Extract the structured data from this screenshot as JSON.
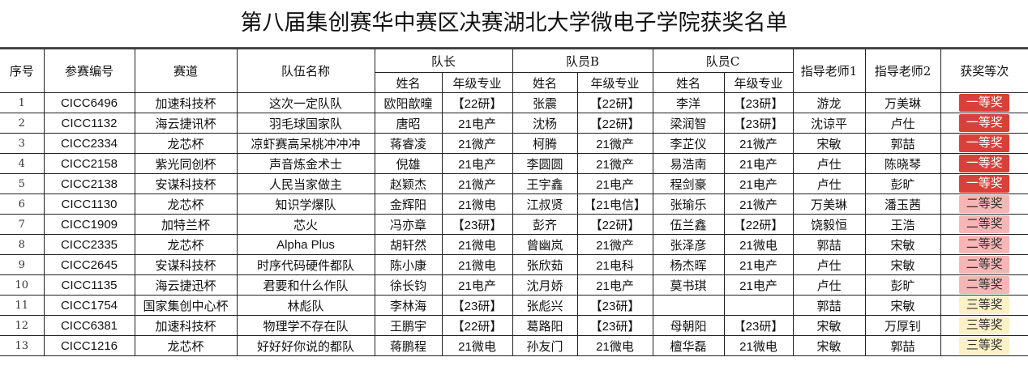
{
  "title": "第八届集创赛华中赛区决赛湖北大学微电子学院获奖名单",
  "headers": {
    "index": "序号",
    "entry_id": "参赛编号",
    "track": "赛道",
    "team_name": "队伍名称",
    "captain": "队长",
    "member_b": "队员B",
    "member_c": "队员C",
    "advisor1": "指导老师1",
    "advisor2": "指导老师2",
    "award": "获奖等次",
    "name": "姓名",
    "grade_major": "年级专业"
  },
  "award_colors": {
    "一等奖": "#d9403a",
    "二等奖": "#f6b6b6",
    "三等奖": "#fcf0c6"
  },
  "rows": [
    [
      "1",
      "CICC6496",
      "加速科技杯",
      "这次一定队队",
      "欧阳歆曈",
      "【22研】",
      "张震",
      "【22研】",
      "李洋",
      "【23研】",
      "游龙",
      "万美琳",
      "一等奖"
    ],
    [
      "2",
      "CICC1132",
      "海云捷讯杯",
      "羽毛球国家队",
      "唐昭",
      "21电产",
      "沈杨",
      "【22研】",
      "梁润智",
      "【23研】",
      "沈谅平",
      "卢仕",
      "一等奖"
    ],
    [
      "3",
      "CICC2334",
      "龙芯杯",
      "凉虾赛高呆桃冲冲冲",
      "蒋睿凌",
      "21微产",
      "柯腾",
      "21微产",
      "李芷仪",
      "21微产",
      "宋敏",
      "郭喆",
      "一等奖"
    ],
    [
      "4",
      "CICC2158",
      "紫光同创杯",
      "声音炼金术士",
      "倪雄",
      "21电产",
      "李圆圆",
      "21微产",
      "易浩南",
      "21电产",
      "卢仕",
      "陈晓琴",
      "一等奖"
    ],
    [
      "5",
      "CICC2138",
      "安谋科技杯",
      "人民当家做主",
      "赵颖杰",
      "21微产",
      "王宇鑫",
      "21电产",
      "程剑豪",
      "21电产",
      "卢仕",
      "彭旷",
      "一等奖"
    ],
    [
      "6",
      "CICC1130",
      "龙芯杯",
      "知识学爆队",
      "金辉阳",
      "21微电",
      "江叔贤",
      "【21电信】",
      "张瑜乐",
      "21微产",
      "万美琳",
      "潘玉茜",
      "二等奖"
    ],
    [
      "7",
      "CICC1909",
      "加特兰杯",
      "芯火",
      "冯亦章",
      "【23研】",
      "彭齐",
      "【22研】",
      "伍兰鑫",
      "【22研】",
      "饶毅恒",
      "王浩",
      "二等奖"
    ],
    [
      "8",
      "CICC2335",
      "龙芯杯",
      "Alpha Plus",
      "胡轩然",
      "21微电",
      "曾幽岚",
      "21微产",
      "张泽彦",
      "21微电",
      "郭喆",
      "宋敏",
      "二等奖"
    ],
    [
      "9",
      "CICC2645",
      "安谋科技杯",
      "时序代码硬件都队",
      "陈小康",
      "21微电",
      "张欣茹",
      "21电科",
      "杨杰晖",
      "21电产",
      "卢仕",
      "宋敏",
      "二等奖"
    ],
    [
      "10",
      "CICC1135",
      "海云捷迅杯",
      "君要和什么作队",
      "徐长钧",
      "21电产",
      "沈月娇",
      "21电产",
      "莫书琪",
      "21电产",
      "卢仕",
      "彭旷",
      "二等奖"
    ],
    [
      "11",
      "CICC1754",
      "国家集创中心杯",
      "林彪队",
      "李林海",
      "【23研】",
      "张彪兴",
      "【23研】",
      "",
      "",
      "郭喆",
      "宋敏",
      "三等奖"
    ],
    [
      "12",
      "CICC6381",
      "加速科技杯",
      "物理学不存在队",
      "王鹏宇",
      "【22研】",
      "葛路阳",
      "【23研】",
      "母朝阳",
      "【23研】",
      "宋敏",
      "万厚钊",
      "三等奖"
    ],
    [
      "13",
      "CICC1216",
      "龙芯杯",
      "好好好你说的都队",
      "蒋鹏程",
      "21微电",
      "孙友门",
      "21微电",
      "檀华磊",
      "21微电",
      "宋敏",
      "郭喆",
      "三等奖"
    ]
  ]
}
